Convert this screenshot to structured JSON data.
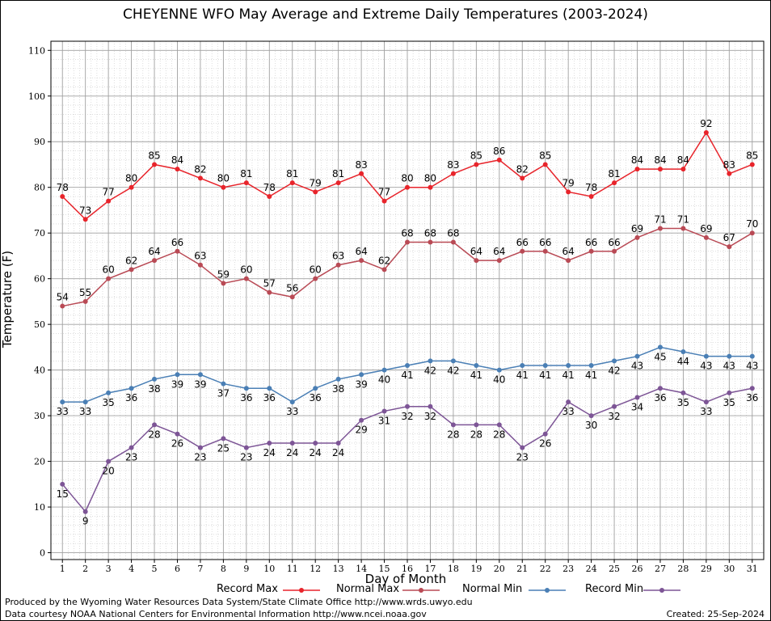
{
  "title": "CHEYENNE WFO May Average and Extreme Daily Temperatures (2003-2024)",
  "footer": {
    "produced_by": "Produced by the Wyoming Water Resources Data System/State Climate Office http://www.wrds.uwyo.edu",
    "data_courtesy": "Data courtesy NOAA National Centers for Environmental Information http://www.ncei.noaa.gov",
    "created": "Created:  25-Sep-2024"
  },
  "chart_data": {
    "type": "line",
    "xlabel": "Day of Month",
    "ylabel": "Temperature (F)",
    "xlim": [
      0.5,
      31.5
    ],
    "ylim": [
      -1.5,
      112
    ],
    "yticks": [
      0,
      10,
      20,
      30,
      40,
      50,
      60,
      70,
      80,
      90,
      100,
      110
    ],
    "grid": true,
    "legend_position": "bottom",
    "x": [
      1,
      2,
      3,
      4,
      5,
      6,
      7,
      8,
      9,
      10,
      11,
      12,
      13,
      14,
      15,
      16,
      17,
      18,
      19,
      20,
      21,
      22,
      23,
      24,
      25,
      26,
      27,
      28,
      29,
      30,
      31
    ],
    "series": [
      {
        "name": "Record Max",
        "color": "#e8242b",
        "label_position": "above",
        "values": [
          78,
          73,
          77,
          80,
          85,
          84,
          82,
          80,
          81,
          78,
          81,
          79,
          81,
          83,
          77,
          80,
          80,
          83,
          85,
          86,
          82,
          85,
          79,
          78,
          81,
          84,
          84,
          84,
          92,
          83,
          85
        ]
      },
      {
        "name": "Normal Max",
        "color": "#b94a55",
        "label_position": "above",
        "values": [
          54,
          55,
          60,
          62,
          64,
          66,
          63,
          59,
          60,
          57,
          56,
          60,
          63,
          64,
          62,
          68,
          68,
          68,
          64,
          64,
          66,
          66,
          64,
          66,
          66,
          69,
          71,
          71,
          69,
          67,
          70
        ]
      },
      {
        "name": "Normal Min",
        "color": "#4a7fb5",
        "label_position": "below",
        "values": [
          33,
          33,
          35,
          36,
          38,
          39,
          39,
          37,
          36,
          36,
          33,
          36,
          38,
          39,
          40,
          41,
          42,
          42,
          41,
          40,
          41,
          41,
          41,
          41,
          42,
          43,
          45,
          44,
          43,
          43,
          43
        ]
      },
      {
        "name": "Record Min",
        "color": "#7d5596",
        "label_position": "below",
        "values": [
          15,
          9,
          20,
          23,
          28,
          26,
          23,
          25,
          23,
          24,
          24,
          24,
          24,
          29,
          31,
          32,
          32,
          28,
          28,
          28,
          23,
          26,
          33,
          30,
          32,
          34,
          36,
          35,
          33,
          35,
          36
        ]
      }
    ]
  }
}
